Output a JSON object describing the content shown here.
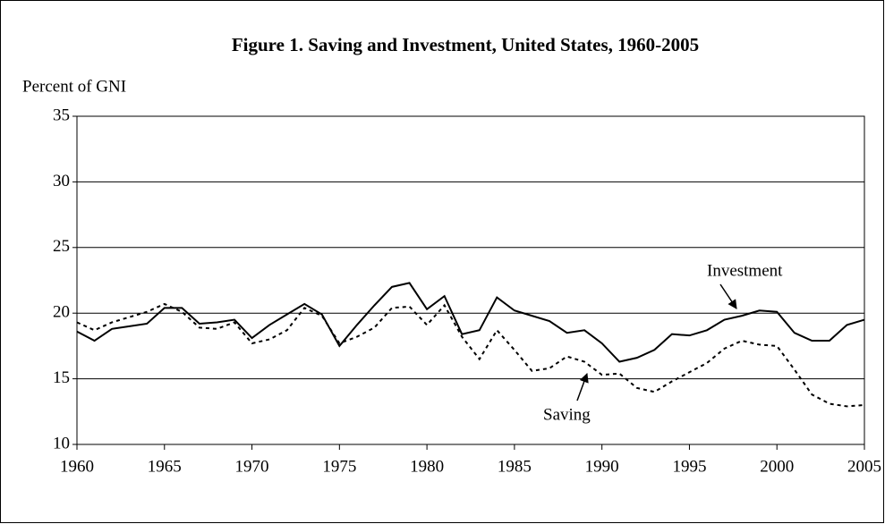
{
  "chart_data": {
    "type": "line",
    "title": "Figure 1. Saving and Investment, United States, 1960-2005",
    "y_axis_label": "Percent of GNI",
    "x": [
      1960,
      1961,
      1962,
      1963,
      1964,
      1965,
      1966,
      1967,
      1968,
      1969,
      1970,
      1971,
      1972,
      1973,
      1974,
      1975,
      1976,
      1977,
      1978,
      1979,
      1980,
      1981,
      1982,
      1983,
      1984,
      1985,
      1986,
      1987,
      1988,
      1989,
      1990,
      1991,
      1992,
      1993,
      1994,
      1995,
      1996,
      1997,
      1998,
      1999,
      2000,
      2001,
      2002,
      2003,
      2004,
      2005
    ],
    "series": [
      {
        "name": "Investment",
        "color": "#000000",
        "dash": "solid",
        "values": [
          18.6,
          17.9,
          18.8,
          19.0,
          19.2,
          20.4,
          20.4,
          19.2,
          19.3,
          19.5,
          18.1,
          19.1,
          19.9,
          20.7,
          19.9,
          17.5,
          19.1,
          20.6,
          22.0,
          22.3,
          20.3,
          21.3,
          18.4,
          18.7,
          21.2,
          20.2,
          19.8,
          19.4,
          18.5,
          18.7,
          17.7,
          16.3,
          16.6,
          17.2,
          18.4,
          18.3,
          18.7,
          19.5,
          19.8,
          20.2,
          20.1,
          18.5,
          17.9,
          17.9,
          19.1,
          19.5
        ]
      },
      {
        "name": "Saving",
        "color": "#000000",
        "dash": "dashed",
        "values": [
          19.3,
          18.7,
          19.3,
          19.7,
          20.1,
          20.7,
          20.1,
          18.9,
          18.8,
          19.3,
          17.7,
          18.0,
          18.7,
          20.4,
          19.8,
          17.7,
          18.2,
          18.9,
          20.4,
          20.5,
          19.1,
          20.6,
          18.2,
          16.5,
          18.7,
          17.2,
          15.6,
          15.8,
          16.7,
          16.3,
          15.3,
          15.4,
          14.3,
          14.0,
          14.8,
          15.5,
          16.2,
          17.3,
          17.9,
          17.6,
          17.5,
          15.7,
          13.8,
          13.1,
          12.9,
          13.0
        ]
      }
    ],
    "xlim": [
      1960,
      2005
    ],
    "xticks": [
      1960,
      1965,
      1970,
      1975,
      1980,
      1985,
      1990,
      1995,
      2000,
      2005
    ],
    "ylim": [
      10,
      35
    ],
    "yticks": [
      10,
      15,
      20,
      25,
      30,
      35
    ],
    "grid": true
  }
}
